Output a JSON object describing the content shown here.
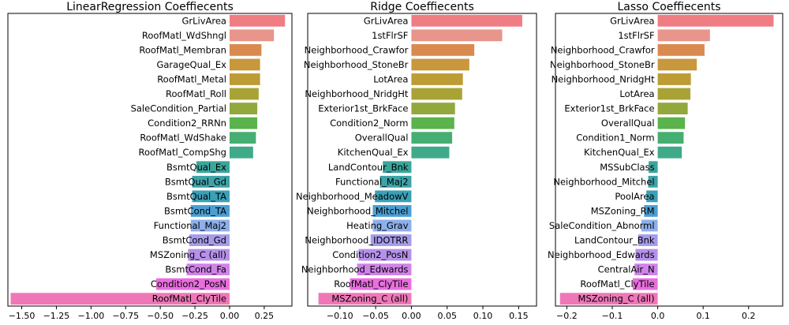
{
  "chart_data": [
    {
      "type": "bar",
      "orientation": "horizontal",
      "title": "LinearRegression Coeffiecents",
      "xlabel": "",
      "ylabel": "",
      "xlim": [
        -1.6,
        0.45
      ],
      "xticks": [
        -1.5,
        -1.25,
        -1.0,
        -0.75,
        -0.5,
        -0.25,
        0.0,
        0.25
      ],
      "xtick_labels": [
        "−1.50",
        "−1.25",
        "−1.00",
        "−0.75",
        "−0.50",
        "−0.25",
        "0.00",
        "0.25"
      ],
      "grid": false,
      "categories": [
        "GrLivArea",
        "RoofMatl_WdShngl",
        "RoofMatl_Membran",
        "GarageQual_Ex",
        "RoofMatl_Metal",
        "RoofMatl_Roll",
        "SaleCondition_Partial",
        "Condition2_RRNn",
        "RoofMatl_WdShake",
        "RoofMatl_CompShg",
        "BsmtQual_Ex",
        "BsmtQual_Gd",
        "BsmtQual_TA",
        "BsmtCond_TA",
        "Functional_Maj2",
        "BsmtCond_Gd",
        "MSZoning_C (all)",
        "BsmtCond_Fa",
        "Condition2_PosN",
        "RoofMatl_ClyTile"
      ],
      "values": [
        0.4,
        0.32,
        0.23,
        0.22,
        0.22,
        0.21,
        0.2,
        0.2,
        0.19,
        0.17,
        -0.24,
        -0.27,
        -0.27,
        -0.28,
        -0.28,
        -0.29,
        -0.3,
        -0.31,
        -0.53,
        -1.58
      ],
      "colors": [
        "#f07c84",
        "#e8958c",
        "#d98a4e",
        "#c9973c",
        "#bd9c36",
        "#a9a336",
        "#93a83c",
        "#5bb34c",
        "#47ae72",
        "#3eaa8a",
        "#3aa69c",
        "#3ca3a8",
        "#3aa0b7",
        "#4a9ed4",
        "#8db0eb",
        "#a79cea",
        "#b691ea",
        "#d083e8",
        "#ea6ee0",
        "#ef77b8"
      ]
    },
    {
      "type": "bar",
      "orientation": "horizontal",
      "title": "Ridge Coeffiecents",
      "xlabel": "",
      "ylabel": "",
      "xlim": [
        -0.145,
        0.175
      ],
      "xticks": [
        -0.1,
        -0.05,
        0.0,
        0.05,
        0.1,
        0.15
      ],
      "xtick_labels": [
        "−0.10",
        "−0.05",
        "0.00",
        "0.05",
        "0.10",
        "0.15"
      ],
      "grid": false,
      "categories": [
        "GrLivArea",
        "1stFlrSF",
        "Neighborhood_Crawfor",
        "Neighborhood_StoneBr",
        "LotArea",
        "Neighborhood_NridgHt",
        "Exterior1st_BrkFace",
        "Condition2_Norm",
        "OverallQual",
        "KitchenQual_Ex",
        "LandContour_Bnk",
        "Functional_Maj2",
        "Neighborhood_MeadowV",
        "Neighborhood_Mitchel",
        "Heating_Grav",
        "Neighborhood_IDOTRR",
        "Condition2_PosN",
        "Neighborhood_Edwards",
        "RoofMatl_ClyTile",
        "MSZoning_C (all)"
      ],
      "values": [
        0.155,
        0.127,
        0.088,
        0.081,
        0.072,
        0.071,
        0.061,
        0.06,
        0.057,
        0.053,
        -0.04,
        -0.044,
        -0.051,
        -0.054,
        -0.054,
        -0.057,
        -0.074,
        -0.076,
        -0.086,
        -0.13
      ],
      "colors": [
        "#f07c84",
        "#e8958c",
        "#d98a4e",
        "#c9973c",
        "#bd9c36",
        "#a9a336",
        "#93a83c",
        "#5bb34c",
        "#47ae72",
        "#3eaa8a",
        "#3aa69c",
        "#3ca3a8",
        "#3aa0b7",
        "#4a9ed4",
        "#8db0eb",
        "#a79cea",
        "#b691ea",
        "#d083e8",
        "#ea6ee0",
        "#ef77b8"
      ]
    },
    {
      "type": "bar",
      "orientation": "horizontal",
      "title": "Lasso Coeffiecents",
      "xlabel": "",
      "ylabel": "",
      "xlim": [
        -0.225,
        0.275
      ],
      "xticks": [
        -0.2,
        -0.1,
        0.0,
        0.1,
        0.2
      ],
      "xtick_labels": [
        "−0.2",
        "−0.1",
        "0.0",
        "0.1",
        "0.2"
      ],
      "grid": false,
      "categories": [
        "GrLivArea",
        "1stFlrSF",
        "Neighborhood_Crawfor",
        "Neighborhood_StoneBr",
        "Neighborhood_NridgHt",
        "LotArea",
        "Exterior1st_BrkFace",
        "OverallQual",
        "Condition1_Norm",
        "KitchenQual_Ex",
        "MSSubClass",
        "Neighborhood_Mitchel",
        "PoolArea",
        "MSZoning_RM",
        "SaleCondition_Abnorml",
        "LandContour_Bnk",
        "Neighborhood_Edwards",
        "CentralAir_N",
        "RoofMatl_ClyTile",
        "MSZoning_C (all)"
      ],
      "values": [
        0.255,
        0.115,
        0.103,
        0.086,
        0.073,
        0.072,
        0.066,
        0.06,
        0.057,
        0.053,
        -0.02,
        -0.021,
        -0.025,
        -0.03,
        -0.036,
        -0.043,
        -0.049,
        -0.051,
        -0.055,
        -0.215
      ],
      "colors": [
        "#f07c84",
        "#e8958c",
        "#d98a4e",
        "#c9973c",
        "#bd9c36",
        "#a9a336",
        "#93a83c",
        "#5bb34c",
        "#47ae72",
        "#3eaa8a",
        "#3aa69c",
        "#3ca3a8",
        "#3aa0b7",
        "#4a9ed4",
        "#8db0eb",
        "#a79cea",
        "#b691ea",
        "#d083e8",
        "#ea6ee0",
        "#ef77b8"
      ]
    }
  ]
}
